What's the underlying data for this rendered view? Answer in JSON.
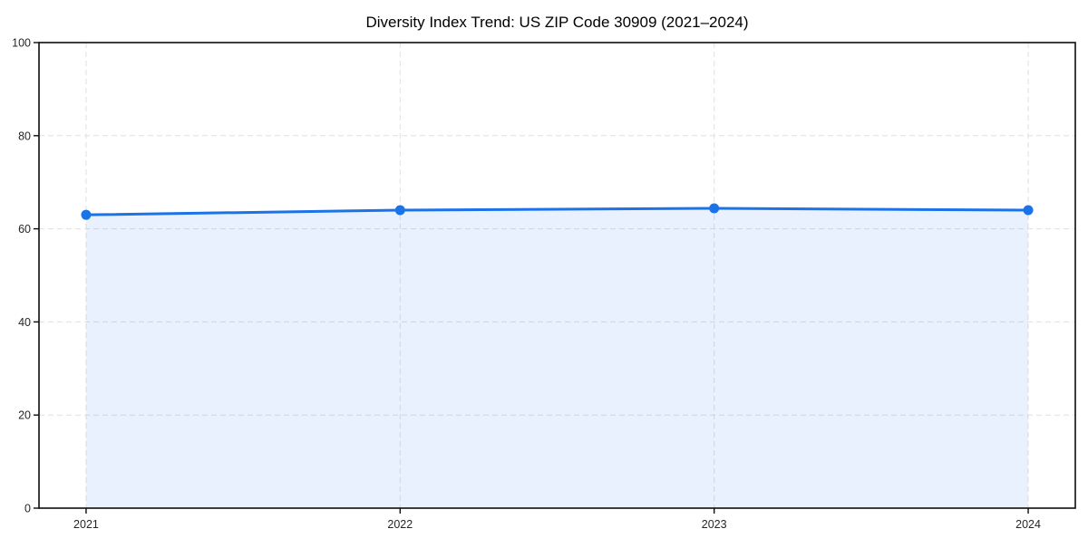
{
  "page": {
    "background": "#ffffff"
  },
  "chart_data": {
    "type": "area",
    "title": "Diversity Index Trend: US ZIP Code 30909 (2021–2024)",
    "x": [
      2021,
      2022,
      2023,
      2024
    ],
    "categories": [
      "2021",
      "2022",
      "2023",
      "2024"
    ],
    "series": [
      {
        "name": "Diversity Index",
        "values": [
          63,
          64,
          64.4,
          64
        ]
      }
    ],
    "xlabel": "",
    "ylabel": "",
    "xlim": [
      2020.85,
      2024.15
    ],
    "ylim": [
      0,
      100
    ],
    "xticks": [
      2021,
      2022,
      2023,
      2024
    ],
    "xtick_labels": [
      "2021",
      "2022",
      "2023",
      "2024"
    ],
    "yticks": [
      0,
      20,
      40,
      60,
      80,
      100
    ],
    "ytick_labels": [
      "0",
      "20",
      "40",
      "60",
      "80",
      "100"
    ],
    "grid": true,
    "grid_style": "dashed",
    "legend": "none",
    "colors": {
      "line": "#1a73e8",
      "marker": "#1a73e8",
      "fill": "#1a73e8",
      "grid": "#e0e0e0",
      "spine": "#0d0d0d",
      "tick": "#0d0d0d",
      "tick_label": "#262626",
      "title": "#000000",
      "background": "#ffffff"
    },
    "style": {
      "fill_opacity": 0.1,
      "line_width": 3,
      "marker_radius": 5.5
    }
  }
}
